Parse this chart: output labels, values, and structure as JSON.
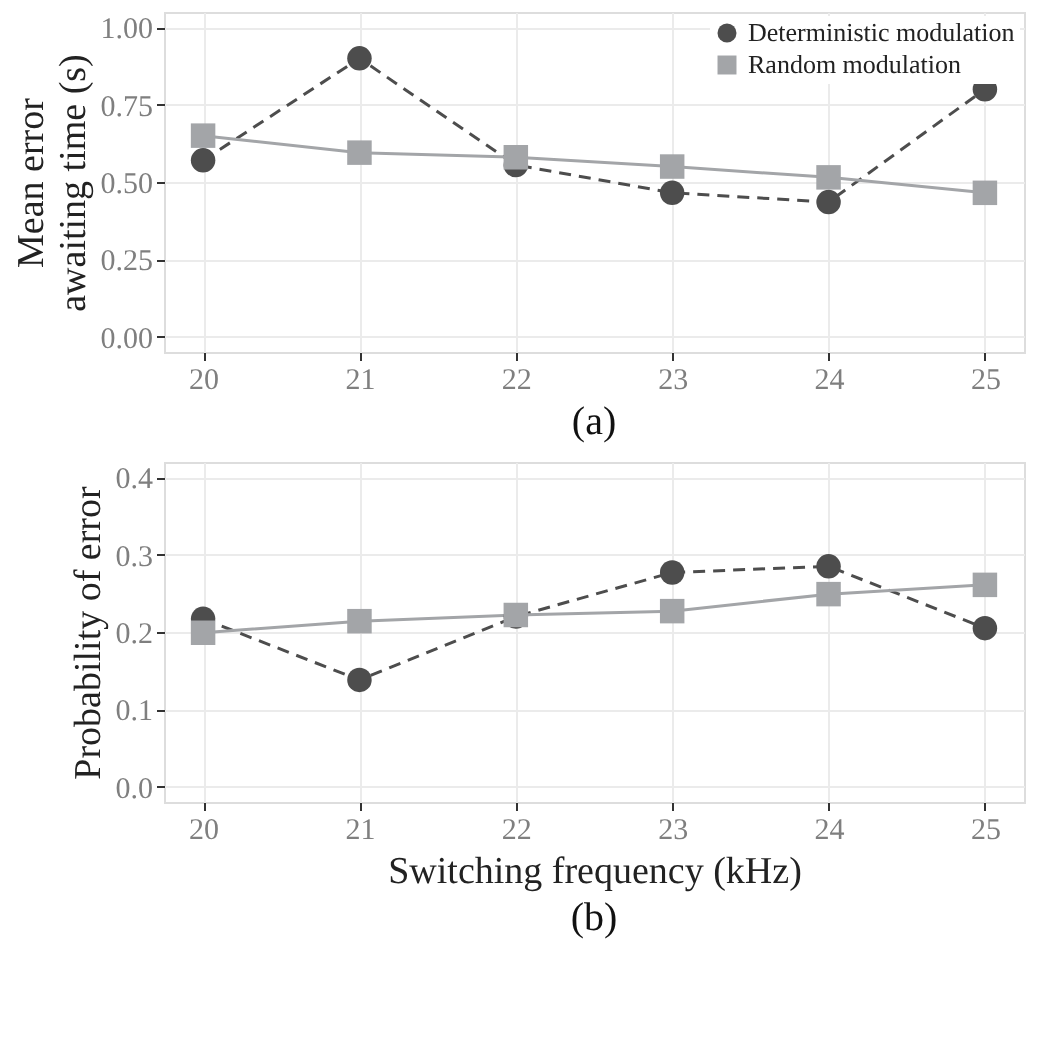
{
  "chart_data": [
    {
      "type": "line",
      "title": "(a)",
      "ylabel": "Mean error\nawaiting time (s)",
      "x": [
        20,
        21,
        22,
        23,
        24,
        25
      ],
      "xlim": [
        19.75,
        25.25
      ],
      "xticks": [
        20,
        21,
        22,
        23,
        24,
        25
      ],
      "ylim": [
        -0.05,
        1.05
      ],
      "yticks": [
        {
          "value": 0,
          "label": "0.00"
        },
        {
          "value": 0.25,
          "label": "0.25"
        },
        {
          "value": 0.5,
          "label": "0.50"
        },
        {
          "value": 0.75,
          "label": "0.75"
        },
        {
          "value": 1,
          "label": "1.00"
        }
      ],
      "grid": true,
      "legend": "top right",
      "series": [
        {
          "name": "Deterministic modulation",
          "color": "#4d4d4d",
          "marker": "circle",
          "line_style": "dashed",
          "values": [
            0.57,
            0.9,
            0.555,
            0.465,
            0.435,
            0.8
          ]
        },
        {
          "name": "Random modulation",
          "color": "#a3a5a8",
          "marker": "square",
          "line_style": "solid",
          "values": [
            0.65,
            0.595,
            0.58,
            0.55,
            0.515,
            0.465
          ]
        }
      ]
    },
    {
      "type": "line",
      "title": "(b)",
      "xlabel": "Switching frequency (kHz)",
      "ylabel": "Probability of error",
      "x": [
        20,
        21,
        22,
        23,
        24,
        25
      ],
      "xlim": [
        19.75,
        25.25
      ],
      "xticks": [
        20,
        21,
        22,
        23,
        24,
        25
      ],
      "ylim": [
        -0.02,
        0.42
      ],
      "yticks": [
        {
          "value": 0,
          "label": "0.0"
        },
        0.1,
        0.2,
        0.3,
        0.4
      ],
      "grid": true,
      "series": [
        {
          "color": "#4d4d4d",
          "marker": "circle",
          "line_style": "dashed",
          "values": [
            0.217,
            0.138,
            0.22,
            0.277,
            0.285,
            0.205
          ]
        },
        {
          "color": "#a3a5a8",
          "marker": "square",
          "line_style": "solid",
          "values": [
            0.199,
            0.214,
            0.222,
            0.227,
            0.249,
            0.261
          ]
        }
      ]
    }
  ]
}
